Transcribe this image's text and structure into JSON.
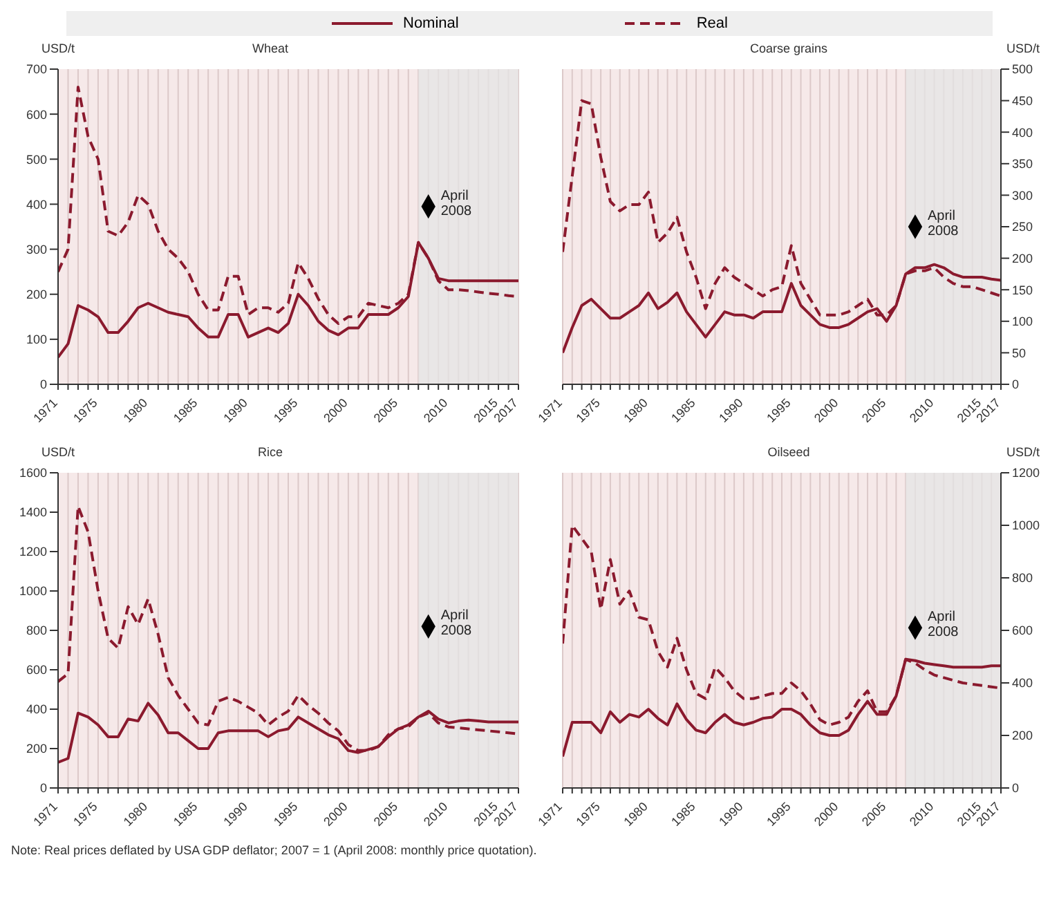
{
  "chart_data": [
    {
      "type": "line",
      "title": "Wheat",
      "ylabel": "USD/t",
      "x": [
        1971,
        1972,
        1973,
        1974,
        1975,
        1976,
        1977,
        1978,
        1979,
        1980,
        1981,
        1982,
        1983,
        1984,
        1985,
        1986,
        1987,
        1988,
        1989,
        1990,
        1991,
        1992,
        1993,
        1994,
        1995,
        1996,
        1997,
        1998,
        1999,
        2000,
        2001,
        2002,
        2003,
        2004,
        2005,
        2006,
        2007,
        2008,
        2009,
        2010,
        2011,
        2012,
        2013,
        2014,
        2015,
        2016,
        2017
      ],
      "xlim": [
        1971,
        2017
      ],
      "xticks": [
        1971,
        {
          "value": 1972,
          "label": null
        },
        {
          "value": 1973,
          "label": null
        },
        {
          "value": 1974,
          "label": null
        },
        1975,
        {
          "value": 1976,
          "label": null
        },
        {
          "value": 1977,
          "label": null
        },
        {
          "value": 1978,
          "label": null
        },
        {
          "value": 1979,
          "label": null
        },
        1980,
        {
          "value": 1981,
          "label": null
        },
        {
          "value": 1982,
          "label": null
        },
        {
          "value": 1983,
          "label": null
        },
        {
          "value": 1984,
          "label": null
        },
        1985,
        {
          "value": 1986,
          "label": null
        },
        {
          "value": 1987,
          "label": null
        },
        {
          "value": 1988,
          "label": null
        },
        {
          "value": 1989,
          "label": null
        },
        1990,
        {
          "value": 1991,
          "label": null
        },
        {
          "value": 1992,
          "label": null
        },
        {
          "value": 1993,
          "label": null
        },
        {
          "value": 1994,
          "label": null
        },
        1995,
        {
          "value": 1996,
          "label": null
        },
        {
          "value": 1997,
          "label": null
        },
        {
          "value": 1998,
          "label": null
        },
        {
          "value": 1999,
          "label": null
        },
        2000,
        {
          "value": 2001,
          "label": null
        },
        {
          "value": 2002,
          "label": null
        },
        {
          "value": 2003,
          "label": null
        },
        {
          "value": 2004,
          "label": null
        },
        2005,
        {
          "value": 2006,
          "label": null
        },
        {
          "value": 2007,
          "label": null
        },
        {
          "value": 2008,
          "label": null
        },
        {
          "value": 2009,
          "label": null
        },
        2010,
        {
          "value": 2011,
          "label": null
        },
        {
          "value": 2012,
          "label": null
        },
        {
          "value": 2013,
          "label": null
        },
        {
          "value": 2014,
          "label": null
        },
        2015,
        {
          "value": 2016,
          "label": null
        },
        2017
      ],
      "ylim": [
        0,
        700
      ],
      "yticks": [
        0,
        100,
        200,
        300,
        400,
        500,
        600,
        700
      ],
      "grid": "x",
      "legend": "top",
      "bands": [
        {
          "axis": "x",
          "from": 2007,
          "to": 2017,
          "color": "#e4e4e4"
        }
      ],
      "series": [
        {
          "name": "Nominal",
          "color": "#8b1a2e",
          "line_style": "solid",
          "values": [
            60,
            90,
            175,
            165,
            150,
            115,
            115,
            140,
            170,
            180,
            170,
            160,
            155,
            150,
            125,
            105,
            105,
            155,
            155,
            105,
            115,
            125,
            115,
            135,
            200,
            175,
            140,
            120,
            110,
            125,
            125,
            155,
            155,
            155,
            170,
            195,
            315,
            280,
            235,
            230,
            230,
            230,
            230,
            230,
            230,
            230,
            230
          ]
        },
        {
          "name": "Real",
          "color": "#8b1a2e",
          "line_style": "dashed",
          "values": [
            250,
            300,
            660,
            550,
            500,
            340,
            330,
            360,
            420,
            400,
            340,
            300,
            280,
            250,
            200,
            165,
            165,
            240,
            240,
            155,
            170,
            170,
            160,
            180,
            270,
            235,
            190,
            155,
            135,
            150,
            150,
            180,
            175,
            170,
            180,
            200,
            315,
            280,
            230,
            210,
            210,
            208,
            205,
            202,
            200,
            197,
            195
          ]
        },
        {
          "type": "scatter",
          "color": "#000000",
          "marker": "diamond",
          "values": [
            null,
            null,
            null,
            null,
            null,
            null,
            null,
            null,
            null,
            null,
            null,
            null,
            null,
            null,
            null,
            null,
            null,
            null,
            null,
            null,
            null,
            null,
            null,
            null,
            null,
            null,
            null,
            null,
            null,
            null,
            null,
            null,
            null,
            null,
            null,
            null,
            null,
            395,
            null,
            null,
            null,
            null,
            null,
            null,
            null,
            null,
            null
          ]
        }
      ],
      "annotations": [
        {
          "text": "April 2008",
          "x": 2008,
          "y": 395
        }
      ]
    },
    {
      "type": "line",
      "title": "Coarse grains",
      "y2label": "USD/t",
      "x": [
        1971,
        1972,
        1973,
        1974,
        1975,
        1976,
        1977,
        1978,
        1979,
        1980,
        1981,
        1982,
        1983,
        1984,
        1985,
        1986,
        1987,
        1988,
        1989,
        1990,
        1991,
        1992,
        1993,
        1994,
        1995,
        1996,
        1997,
        1998,
        1999,
        2000,
        2001,
        2002,
        2003,
        2004,
        2005,
        2006,
        2007,
        2008,
        2009,
        2010,
        2011,
        2012,
        2013,
        2014,
        2015,
        2016,
        2017
      ],
      "xlim": [
        1971,
        2017
      ],
      "xticks": [
        1971,
        {
          "value": 1972,
          "label": null
        },
        {
          "value": 1973,
          "label": null
        },
        {
          "value": 1974,
          "label": null
        },
        1975,
        {
          "value": 1976,
          "label": null
        },
        {
          "value": 1977,
          "label": null
        },
        {
          "value": 1978,
          "label": null
        },
        {
          "value": 1979,
          "label": null
        },
        1980,
        {
          "value": 1981,
          "label": null
        },
        {
          "value": 1982,
          "label": null
        },
        {
          "value": 1983,
          "label": null
        },
        {
          "value": 1984,
          "label": null
        },
        1985,
        {
          "value": 1986,
          "label": null
        },
        {
          "value": 1987,
          "label": null
        },
        {
          "value": 1988,
          "label": null
        },
        {
          "value": 1989,
          "label": null
        },
        1990,
        {
          "value": 1991,
          "label": null
        },
        {
          "value": 1992,
          "label": null
        },
        {
          "value": 1993,
          "label": null
        },
        {
          "value": 1994,
          "label": null
        },
        1995,
        {
          "value": 1996,
          "label": null
        },
        {
          "value": 1997,
          "label": null
        },
        {
          "value": 1998,
          "label": null
        },
        {
          "value": 1999,
          "label": null
        },
        2000,
        {
          "value": 2001,
          "label": null
        },
        {
          "value": 2002,
          "label": null
        },
        {
          "value": 2003,
          "label": null
        },
        {
          "value": 2004,
          "label": null
        },
        2005,
        {
          "value": 2006,
          "label": null
        },
        {
          "value": 2007,
          "label": null
        },
        {
          "value": 2008,
          "label": null
        },
        {
          "value": 2009,
          "label": null
        },
        2010,
        {
          "value": 2011,
          "label": null
        },
        {
          "value": 2012,
          "label": null
        },
        {
          "value": 2013,
          "label": null
        },
        {
          "value": 2014,
          "label": null
        },
        2015,
        {
          "value": 2016,
          "label": null
        },
        2017
      ],
      "y2lim": [
        0,
        500
      ],
      "y2ticks": [
        0,
        50,
        100,
        150,
        200,
        250,
        300,
        350,
        400,
        450,
        500
      ],
      "grid": "x",
      "bands": [
        {
          "axis": "x",
          "from": 2007,
          "to": 2017,
          "color": "#e4e4e4"
        }
      ],
      "series": [
        {
          "color": "#8b1a2e",
          "line_style": "solid",
          "axis": "y2",
          "values": [
            50,
            90,
            125,
            135,
            120,
            105,
            105,
            115,
            125,
            145,
            120,
            130,
            145,
            115,
            95,
            75,
            95,
            115,
            110,
            110,
            105,
            115,
            115,
            115,
            160,
            125,
            110,
            95,
            90,
            90,
            95,
            105,
            115,
            120,
            100,
            125,
            175,
            185,
            185,
            190,
            185,
            175,
            170,
            170,
            170,
            167,
            165
          ]
        },
        {
          "color": "#8b1a2e",
          "line_style": "dashed",
          "axis": "y2",
          "values": [
            210,
            330,
            450,
            445,
            360,
            290,
            275,
            285,
            285,
            305,
            225,
            240,
            265,
            210,
            170,
            120,
            160,
            185,
            170,
            160,
            150,
            140,
            150,
            155,
            220,
            160,
            135,
            110,
            110,
            110,
            115,
            125,
            135,
            110,
            110,
            125,
            175,
            180,
            180,
            185,
            170,
            160,
            155,
            155,
            150,
            145,
            140
          ]
        },
        {
          "type": "scatter",
          "color": "#000000",
          "marker": "diamond",
          "axis": "y2",
          "values": [
            null,
            null,
            null,
            null,
            null,
            null,
            null,
            null,
            null,
            null,
            null,
            null,
            null,
            null,
            null,
            null,
            null,
            null,
            null,
            null,
            null,
            null,
            null,
            null,
            null,
            null,
            null,
            null,
            null,
            null,
            null,
            null,
            null,
            null,
            null,
            null,
            null,
            250,
            null,
            null,
            null,
            null,
            null,
            null,
            null,
            null,
            null
          ]
        }
      ],
      "annotations": [
        "April 2008"
      ]
    },
    {
      "type": "line",
      "title": "Rice",
      "ylabel": "USD/t",
      "x": [
        1971,
        1972,
        1973,
        1974,
        1975,
        1976,
        1977,
        1978,
        1979,
        1980,
        1981,
        1982,
        1983,
        1984,
        1985,
        1986,
        1987,
        1988,
        1989,
        1990,
        1991,
        1992,
        1993,
        1994,
        1995,
        1996,
        1997,
        1998,
        1999,
        2000,
        2001,
        2002,
        2003,
        2004,
        2005,
        2006,
        2007,
        2008,
        2009,
        2010,
        2011,
        2012,
        2013,
        2014,
        2015,
        2016,
        2017
      ],
      "xlim": [
        1971,
        2017
      ],
      "xticks": [
        1971,
        {
          "value": 1972,
          "label": null
        },
        {
          "value": 1973,
          "label": null
        },
        {
          "value": 1974,
          "label": null
        },
        1975,
        {
          "value": 1976,
          "label": null
        },
        {
          "value": 1977,
          "label": null
        },
        {
          "value": 1978,
          "label": null
        },
        {
          "value": 1979,
          "label": null
        },
        1980,
        {
          "value": 1981,
          "label": null
        },
        {
          "value": 1982,
          "label": null
        },
        {
          "value": 1983,
          "label": null
        },
        {
          "value": 1984,
          "label": null
        },
        1985,
        {
          "value": 1986,
          "label": null
        },
        {
          "value": 1987,
          "label": null
        },
        {
          "value": 1988,
          "label": null
        },
        {
          "value": 1989,
          "label": null
        },
        1990,
        {
          "value": 1991,
          "label": null
        },
        {
          "value": 1992,
          "label": null
        },
        {
          "value": 1993,
          "label": null
        },
        {
          "value": 1994,
          "label": null
        },
        1995,
        {
          "value": 1996,
          "label": null
        },
        {
          "value": 1997,
          "label": null
        },
        {
          "value": 1998,
          "label": null
        },
        {
          "value": 1999,
          "label": null
        },
        2000,
        {
          "value": 2001,
          "label": null
        },
        {
          "value": 2002,
          "label": null
        },
        {
          "value": 2003,
          "label": null
        },
        {
          "value": 2004,
          "label": null
        },
        2005,
        {
          "value": 2006,
          "label": null
        },
        {
          "value": 2007,
          "label": null
        },
        {
          "value": 2008,
          "label": null
        },
        {
          "value": 2009,
          "label": null
        },
        2010,
        {
          "value": 2011,
          "label": null
        },
        {
          "value": 2012,
          "label": null
        },
        {
          "value": 2013,
          "label": null
        },
        {
          "value": 2014,
          "label": null
        },
        2015,
        {
          "value": 2016,
          "label": null
        },
        2017
      ],
      "ylim": [
        0,
        1600
      ],
      "yticks": [
        0,
        200,
        400,
        600,
        800,
        1000,
        1200,
        1400,
        1600
      ],
      "grid": "x",
      "bands": [
        {
          "axis": "x",
          "from": 2007,
          "to": 2017,
          "color": "#e4e4e4"
        }
      ],
      "series": [
        {
          "color": "#8b1a2e",
          "line_style": "solid",
          "values": [
            130,
            150,
            380,
            360,
            320,
            260,
            260,
            350,
            340,
            430,
            370,
            280,
            280,
            240,
            200,
            200,
            280,
            290,
            290,
            290,
            290,
            260,
            290,
            300,
            360,
            330,
            300,
            270,
            250,
            190,
            180,
            195,
            210,
            260,
            300,
            320,
            360,
            390,
            350,
            330,
            340,
            345,
            340,
            335,
            335,
            335,
            335
          ]
        },
        {
          "color": "#8b1a2e",
          "line_style": "dashed",
          "values": [
            540,
            580,
            1430,
            1300,
            1000,
            760,
            710,
            920,
            830,
            960,
            780,
            560,
            470,
            400,
            330,
            320,
            440,
            460,
            440,
            410,
            380,
            320,
            360,
            390,
            470,
            420,
            380,
            330,
            290,
            220,
            190,
            190,
            210,
            270,
            300,
            310,
            360,
            380,
            330,
            310,
            305,
            300,
            295,
            290,
            285,
            280,
            275
          ]
        },
        {
          "type": "scatter",
          "color": "#000000",
          "marker": "diamond",
          "values": [
            null,
            null,
            null,
            null,
            null,
            null,
            null,
            null,
            null,
            null,
            null,
            null,
            null,
            null,
            null,
            null,
            null,
            null,
            null,
            null,
            null,
            null,
            null,
            null,
            null,
            null,
            null,
            null,
            null,
            null,
            null,
            null,
            null,
            null,
            null,
            null,
            null,
            820,
            null,
            null,
            null,
            null,
            null,
            null,
            null,
            null,
            null
          ]
        }
      ],
      "annotations": [
        {
          "text": "April 2008",
          "x": 2008,
          "y": 820
        },
        "Note: Real prices deflated by USA GDP deflator; 2007 = 1 (April 2008: monthly price quotation)."
      ]
    },
    {
      "type": "line",
      "title": "Oilseed",
      "y2label": "USD/t",
      "x": [
        1971,
        1972,
        1973,
        1974,
        1975,
        1976,
        1977,
        1978,
        1979,
        1980,
        1981,
        1982,
        1983,
        1984,
        1985,
        1986,
        1987,
        1988,
        1989,
        1990,
        1991,
        1992,
        1993,
        1994,
        1995,
        1996,
        1997,
        1998,
        1999,
        2000,
        2001,
        2002,
        2003,
        2004,
        2005,
        2006,
        2007,
        2008,
        2009,
        2010,
        2011,
        2012,
        2013,
        2014,
        2015,
        2016,
        2017
      ],
      "xlim": [
        1971,
        2017
      ],
      "xticks": [
        1971,
        {
          "value": 1972,
          "label": null
        },
        {
          "value": 1973,
          "label": null
        },
        {
          "value": 1974,
          "label": null
        },
        1975,
        {
          "value": 1976,
          "label": null
        },
        {
          "value": 1977,
          "label": null
        },
        {
          "value": 1978,
          "label": null
        },
        {
          "value": 1979,
          "label": null
        },
        1980,
        {
          "value": 1981,
          "label": null
        },
        {
          "value": 1982,
          "label": null
        },
        {
          "value": 1983,
          "label": null
        },
        {
          "value": 1984,
          "label": null
        },
        1985,
        {
          "value": 1986,
          "label": null
        },
        {
          "value": 1987,
          "label": null
        },
        {
          "value": 1988,
          "label": null
        },
        {
          "value": 1989,
          "label": null
        },
        1990,
        {
          "value": 1991,
          "label": null
        },
        {
          "value": 1992,
          "label": null
        },
        {
          "value": 1993,
          "label": null
        },
        {
          "value": 1994,
          "label": null
        },
        1995,
        {
          "value": 1996,
          "label": null
        },
        {
          "value": 1997,
          "label": null
        },
        {
          "value": 1998,
          "label": null
        },
        {
          "value": 1999,
          "label": null
        },
        2000,
        {
          "value": 2001,
          "label": null
        },
        {
          "value": 2002,
          "label": null
        },
        {
          "value": 2003,
          "label": null
        },
        {
          "value": 2004,
          "label": null
        },
        2005,
        {
          "value": 2006,
          "label": null
        },
        {
          "value": 2007,
          "label": null
        },
        {
          "value": 2008,
          "label": null
        },
        {
          "value": 2009,
          "label": null
        },
        2010,
        {
          "value": 2011,
          "label": null
        },
        {
          "value": 2012,
          "label": null
        },
        {
          "value": 2013,
          "label": null
        },
        {
          "value": 2014,
          "label": null
        },
        2015,
        {
          "value": 2016,
          "label": null
        },
        2017
      ],
      "y2lim": [
        0,
        1200
      ],
      "y2ticks": [
        0,
        200,
        400,
        600,
        800,
        1000,
        1200
      ],
      "grid": "x",
      "bands": [
        {
          "axis": "x",
          "from": 2007,
          "to": 2017,
          "color": "#e4e4e4"
        }
      ],
      "series": [
        {
          "color": "#8b1a2e",
          "line_style": "solid",
          "axis": "y2",
          "values": [
            120,
            250,
            250,
            250,
            210,
            290,
            250,
            280,
            270,
            300,
            265,
            240,
            320,
            260,
            220,
            210,
            250,
            280,
            250,
            240,
            250,
            265,
            270,
            300,
            300,
            280,
            240,
            210,
            200,
            200,
            220,
            280,
            330,
            280,
            280,
            350,
            490,
            485,
            475,
            470,
            465,
            460,
            460,
            460,
            460,
            465,
            465
          ]
        },
        {
          "color": "#8b1a2e",
          "line_style": "dashed",
          "axis": "y2",
          "values": [
            550,
            1000,
            950,
            900,
            680,
            870,
            700,
            750,
            650,
            640,
            520,
            460,
            570,
            450,
            360,
            340,
            460,
            420,
            370,
            340,
            340,
            350,
            360,
            360,
            400,
            370,
            320,
            260,
            240,
            250,
            270,
            330,
            370,
            290,
            290,
            350,
            490,
            475,
            450,
            430,
            420,
            410,
            400,
            395,
            390,
            385,
            380
          ]
        },
        {
          "type": "scatter",
          "color": "#000000",
          "marker": "diamond",
          "axis": "y2",
          "values": [
            null,
            null,
            null,
            null,
            null,
            null,
            null,
            null,
            null,
            null,
            null,
            null,
            null,
            null,
            null,
            null,
            null,
            null,
            null,
            null,
            null,
            null,
            null,
            null,
            null,
            null,
            null,
            null,
            null,
            null,
            null,
            null,
            null,
            null,
            null,
            null,
            null,
            610,
            null,
            null,
            null,
            null,
            null,
            null,
            null,
            null,
            null
          ]
        }
      ],
      "annotations": [
        "April 2008"
      ]
    }
  ]
}
